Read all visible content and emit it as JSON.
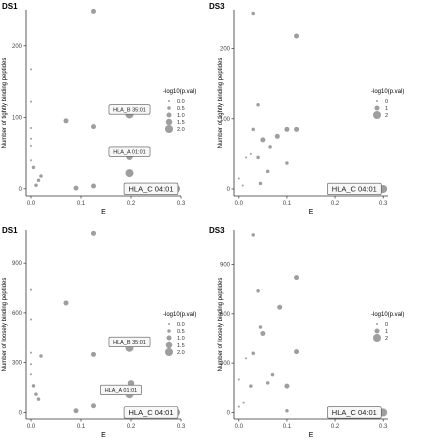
{
  "colors": {
    "point": "#9e9e9e",
    "axis": "#333333",
    "label_border": "#555555",
    "label_bg": "#f7f7f7"
  },
  "chart_data": [
    {
      "id": "tl",
      "type": "scatter",
      "title": "DS1",
      "xlabel": "E",
      "ylabel": "Number of tightly binding peptides",
      "xlim": [
        -0.01,
        0.3
      ],
      "ylim": [
        -10,
        250
      ],
      "xticks": [
        0,
        0.1,
        0.2,
        0.3
      ],
      "xtick_labels": [
        "0.0",
        "0.1",
        "0.2",
        "0.3"
      ],
      "yticks": [
        0,
        100,
        200
      ],
      "ytick_labels": [
        "0",
        "100",
        "200"
      ],
      "legend": {
        "title": "-log10(p.val)",
        "placement": "right",
        "entries": [
          "0.0",
          "0.5",
          "1.0",
          "1.5",
          "2.0"
        ],
        "values": [
          0,
          0.5,
          1,
          1.5,
          2
        ]
      },
      "points": [
        {
          "x": 0.0,
          "y": 167,
          "s": 0
        },
        {
          "x": 0.0,
          "y": 122,
          "s": 0
        },
        {
          "x": 0.0,
          "y": 85,
          "s": 0
        },
        {
          "x": 0.0,
          "y": 70,
          "s": 0
        },
        {
          "x": 0.0,
          "y": 60,
          "s": 0
        },
        {
          "x": 0.0,
          "y": 40,
          "s": 0
        },
        {
          "x": 0.005,
          "y": 30,
          "s": 0.5
        },
        {
          "x": 0.01,
          "y": 5,
          "s": 0.5
        },
        {
          "x": 0.015,
          "y": 12,
          "s": 0.5
        },
        {
          "x": 0.02,
          "y": 18,
          "s": 0.5
        },
        {
          "x": 0.07,
          "y": 95,
          "s": 1.0
        },
        {
          "x": 0.09,
          "y": 1,
          "s": 1.0
        },
        {
          "x": 0.125,
          "y": 248,
          "s": 1.0
        },
        {
          "x": 0.125,
          "y": 87,
          "s": 1.0
        },
        {
          "x": 0.125,
          "y": 4,
          "s": 1.0
        },
        {
          "x": 0.197,
          "y": 104,
          "s": 2.0
        },
        {
          "x": 0.197,
          "y": 45,
          "s": 1.5
        },
        {
          "x": 0.197,
          "y": 22,
          "s": 2.0
        },
        {
          "x": 0.29,
          "y": 0,
          "s": 2.0
        }
      ],
      "annotations": [
        {
          "text": "HLA_B 35:01",
          "x": 0.197,
          "y": 111,
          "size": "small"
        },
        {
          "text": "HLA_A 01:01",
          "x": 0.197,
          "y": 52,
          "size": "small"
        },
        {
          "text": "HLA_C 04:01",
          "x": 0.24,
          "y": 0,
          "size": "large"
        }
      ]
    },
    {
      "id": "tr",
      "type": "scatter",
      "title": "DS3",
      "xlabel": "E",
      "ylabel": "Number of tightly binding peptides",
      "xlim": [
        -0.01,
        0.31
      ],
      "ylim": [
        -10,
        255
      ],
      "xticks": [
        0,
        0.1,
        0.2,
        0.3
      ],
      "xtick_labels": [
        "0.0",
        "0.1",
        "0.2",
        "0.3"
      ],
      "yticks": [
        0,
        100,
        200
      ],
      "ytick_labels": [
        "0",
        "100",
        "200"
      ],
      "legend": {
        "title": "-log10(p.val)",
        "placement": "right",
        "entries": [
          "0",
          "1",
          "2"
        ],
        "values": [
          0,
          1,
          2
        ]
      },
      "points": [
        {
          "x": 0.0,
          "y": 15,
          "s": 0
        },
        {
          "x": 0.008,
          "y": 5,
          "s": 0
        },
        {
          "x": 0.015,
          "y": 45,
          "s": 0
        },
        {
          "x": 0.025,
          "y": 50,
          "s": 0
        },
        {
          "x": 0.03,
          "y": 85,
          "s": 0.5
        },
        {
          "x": 0.03,
          "y": 250,
          "s": 0.5
        },
        {
          "x": 0.04,
          "y": 120,
          "s": 0.5
        },
        {
          "x": 0.04,
          "y": 45,
          "s": 0.5
        },
        {
          "x": 0.045,
          "y": 8,
          "s": 0.5
        },
        {
          "x": 0.05,
          "y": 70,
          "s": 1.0
        },
        {
          "x": 0.06,
          "y": 25,
          "s": 0.5
        },
        {
          "x": 0.065,
          "y": 60,
          "s": 0.5
        },
        {
          "x": 0.08,
          "y": 75,
          "s": 1.0
        },
        {
          "x": 0.1,
          "y": 85,
          "s": 1.0
        },
        {
          "x": 0.1,
          "y": 37,
          "s": 0.5
        },
        {
          "x": 0.12,
          "y": 218,
          "s": 1.0
        },
        {
          "x": 0.12,
          "y": 85,
          "s": 1.0
        },
        {
          "x": 0.3,
          "y": 0,
          "s": 2.0
        }
      ],
      "annotations": [
        {
          "text": "HLA_C 04:01",
          "x": 0.24,
          "y": 0,
          "size": "large"
        }
      ]
    },
    {
      "id": "bl",
      "type": "scatter",
      "title": "DS1",
      "xlabel": "E",
      "ylabel": "Number of loosely binding peptides",
      "xlim": [
        -0.01,
        0.3
      ],
      "ylim": [
        -40,
        1100
      ],
      "xticks": [
        0,
        0.1,
        0.2,
        0.3
      ],
      "xtick_labels": [
        "0.0",
        "0.1",
        "0.2",
        "0.3"
      ],
      "yticks": [
        0,
        300,
        600,
        900
      ],
      "ytick_labels": [
        "0",
        "300",
        "600",
        "900"
      ],
      "legend": {
        "title": "-log10(p.val)",
        "placement": "right",
        "entries": [
          "0.0",
          "0.5",
          "1.0",
          "1.5",
          "2.0"
        ],
        "values": [
          0,
          0.5,
          1,
          1.5,
          2
        ]
      },
      "points": [
        {
          "x": 0.0,
          "y": 740,
          "s": 0
        },
        {
          "x": 0.0,
          "y": 560,
          "s": 0
        },
        {
          "x": 0.0,
          "y": 360,
          "s": 0
        },
        {
          "x": 0.0,
          "y": 290,
          "s": 0
        },
        {
          "x": 0.0,
          "y": 230,
          "s": 0
        },
        {
          "x": 0.005,
          "y": 160,
          "s": 0.5
        },
        {
          "x": 0.01,
          "y": 110,
          "s": 0.5
        },
        {
          "x": 0.015,
          "y": 80,
          "s": 0.5
        },
        {
          "x": 0.02,
          "y": 340,
          "s": 0.5
        },
        {
          "x": 0.07,
          "y": 660,
          "s": 1.0
        },
        {
          "x": 0.09,
          "y": 10,
          "s": 1.0
        },
        {
          "x": 0.125,
          "y": 1080,
          "s": 1.0
        },
        {
          "x": 0.125,
          "y": 350,
          "s": 1.0
        },
        {
          "x": 0.125,
          "y": 40,
          "s": 1.0
        },
        {
          "x": 0.197,
          "y": 390,
          "s": 2.0
        },
        {
          "x": 0.2,
          "y": 175,
          "s": 1.5
        },
        {
          "x": 0.197,
          "y": 110,
          "s": 2.0
        },
        {
          "x": 0.29,
          "y": 0,
          "s": 2.0
        }
      ],
      "annotations": [
        {
          "text": "HLA_B 35:01",
          "x": 0.197,
          "y": 425,
          "size": "small"
        },
        {
          "text": "HLA_A 01:01",
          "x": 0.18,
          "y": 135,
          "size": "small"
        },
        {
          "text": "HLA_C 04:01",
          "x": 0.24,
          "y": 0,
          "size": "large"
        }
      ]
    },
    {
      "id": "br",
      "type": "scatter",
      "title": "DS3",
      "xlabel": "E",
      "ylabel": "Number of loosely binding peptides",
      "xlim": [
        -0.01,
        0.31
      ],
      "ylim": [
        -40,
        1110
      ],
      "xticks": [
        0,
        0.1,
        0.2,
        0.3
      ],
      "xtick_labels": [
        "0.0",
        "0.1",
        "0.2",
        "0.3"
      ],
      "yticks": [
        0,
        300,
        600,
        900
      ],
      "ytick_labels": [
        "0",
        "300",
        "600",
        "900"
      ],
      "legend": {
        "title": "-log10(p.val)",
        "placement": "right",
        "entries": [
          "0",
          "1",
          "2"
        ],
        "values": [
          0,
          1,
          2
        ]
      },
      "points": [
        {
          "x": 0.0,
          "y": 35,
          "s": 0
        },
        {
          "x": 0.0,
          "y": 200,
          "s": 0
        },
        {
          "x": 0.01,
          "y": 60,
          "s": 0
        },
        {
          "x": 0.015,
          "y": 330,
          "s": 0
        },
        {
          "x": 0.025,
          "y": 160,
          "s": 0.5
        },
        {
          "x": 0.03,
          "y": 1080,
          "s": 0.5
        },
        {
          "x": 0.03,
          "y": 360,
          "s": 0.5
        },
        {
          "x": 0.04,
          "y": 740,
          "s": 0.5
        },
        {
          "x": 0.045,
          "y": 520,
          "s": 0.5
        },
        {
          "x": 0.05,
          "y": 480,
          "s": 1.0
        },
        {
          "x": 0.06,
          "y": 180,
          "s": 0.5
        },
        {
          "x": 0.07,
          "y": 230,
          "s": 0.5
        },
        {
          "x": 0.085,
          "y": 640,
          "s": 1.0
        },
        {
          "x": 0.1,
          "y": 160,
          "s": 1.0
        },
        {
          "x": 0.1,
          "y": 10,
          "s": 0.5
        },
        {
          "x": 0.12,
          "y": 820,
          "s": 1.0
        },
        {
          "x": 0.12,
          "y": 370,
          "s": 1.0
        },
        {
          "x": 0.3,
          "y": 0,
          "s": 2.0
        }
      ],
      "annotations": [
        {
          "text": "HLA_C 04:01",
          "x": 0.24,
          "y": 0,
          "size": "large"
        }
      ]
    }
  ]
}
